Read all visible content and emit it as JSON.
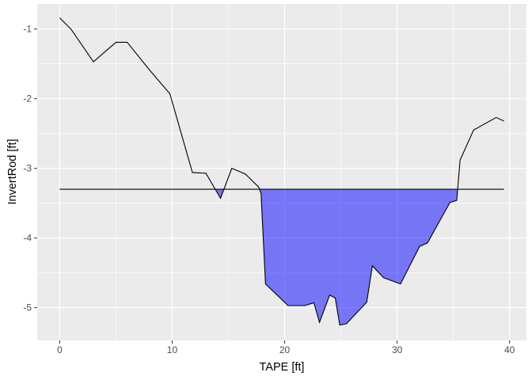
{
  "chart_data": {
    "type": "area",
    "xlabel": "TAPE [ft]",
    "ylabel": "InvertRod [ft]",
    "xlim": [
      -2.0,
      41.5
    ],
    "ylim": [
      -5.47,
      -0.64
    ],
    "x_ticks": [
      0,
      10,
      20,
      30,
      40
    ],
    "y_ticks": [
      -1,
      -2,
      -3,
      -4,
      -5
    ],
    "grid": true,
    "panel_background": "#ebebeb",
    "grid_color": "#ffffff",
    "water_surface_elevation": -3.3,
    "water_surface_x_range": [
      0,
      39.5
    ],
    "fill_color": "#0000ff",
    "fill_opacity": 0.5,
    "line_color": "#000000",
    "series": [
      {
        "x": [
          0,
          1,
          3,
          5,
          6,
          8,
          9.8,
          11.8,
          13,
          14.3,
          15.3,
          16.5,
          17.7,
          17.9,
          18.3,
          20.3,
          21.8,
          22.6,
          23.1,
          24.0,
          24.5,
          24.9,
          25.5,
          27.3,
          27.8,
          28.8,
          30.3,
          32.0,
          32.7,
          34.7,
          35.3,
          35.6,
          36.8,
          38.8,
          39.5
        ],
        "y": [
          -0.84,
          -1.0,
          -1.47,
          -1.19,
          -1.19,
          -1.59,
          -1.93,
          -3.06,
          -3.07,
          -3.43,
          -3.0,
          -3.08,
          -3.27,
          -3.36,
          -4.66,
          -4.97,
          -4.97,
          -4.93,
          -5.21,
          -4.82,
          -4.86,
          -5.25,
          -5.23,
          -4.92,
          -4.4,
          -4.57,
          -4.66,
          -4.12,
          -4.07,
          -3.49,
          -3.46,
          -2.88,
          -2.45,
          -2.27,
          -2.32
        ]
      }
    ]
  }
}
